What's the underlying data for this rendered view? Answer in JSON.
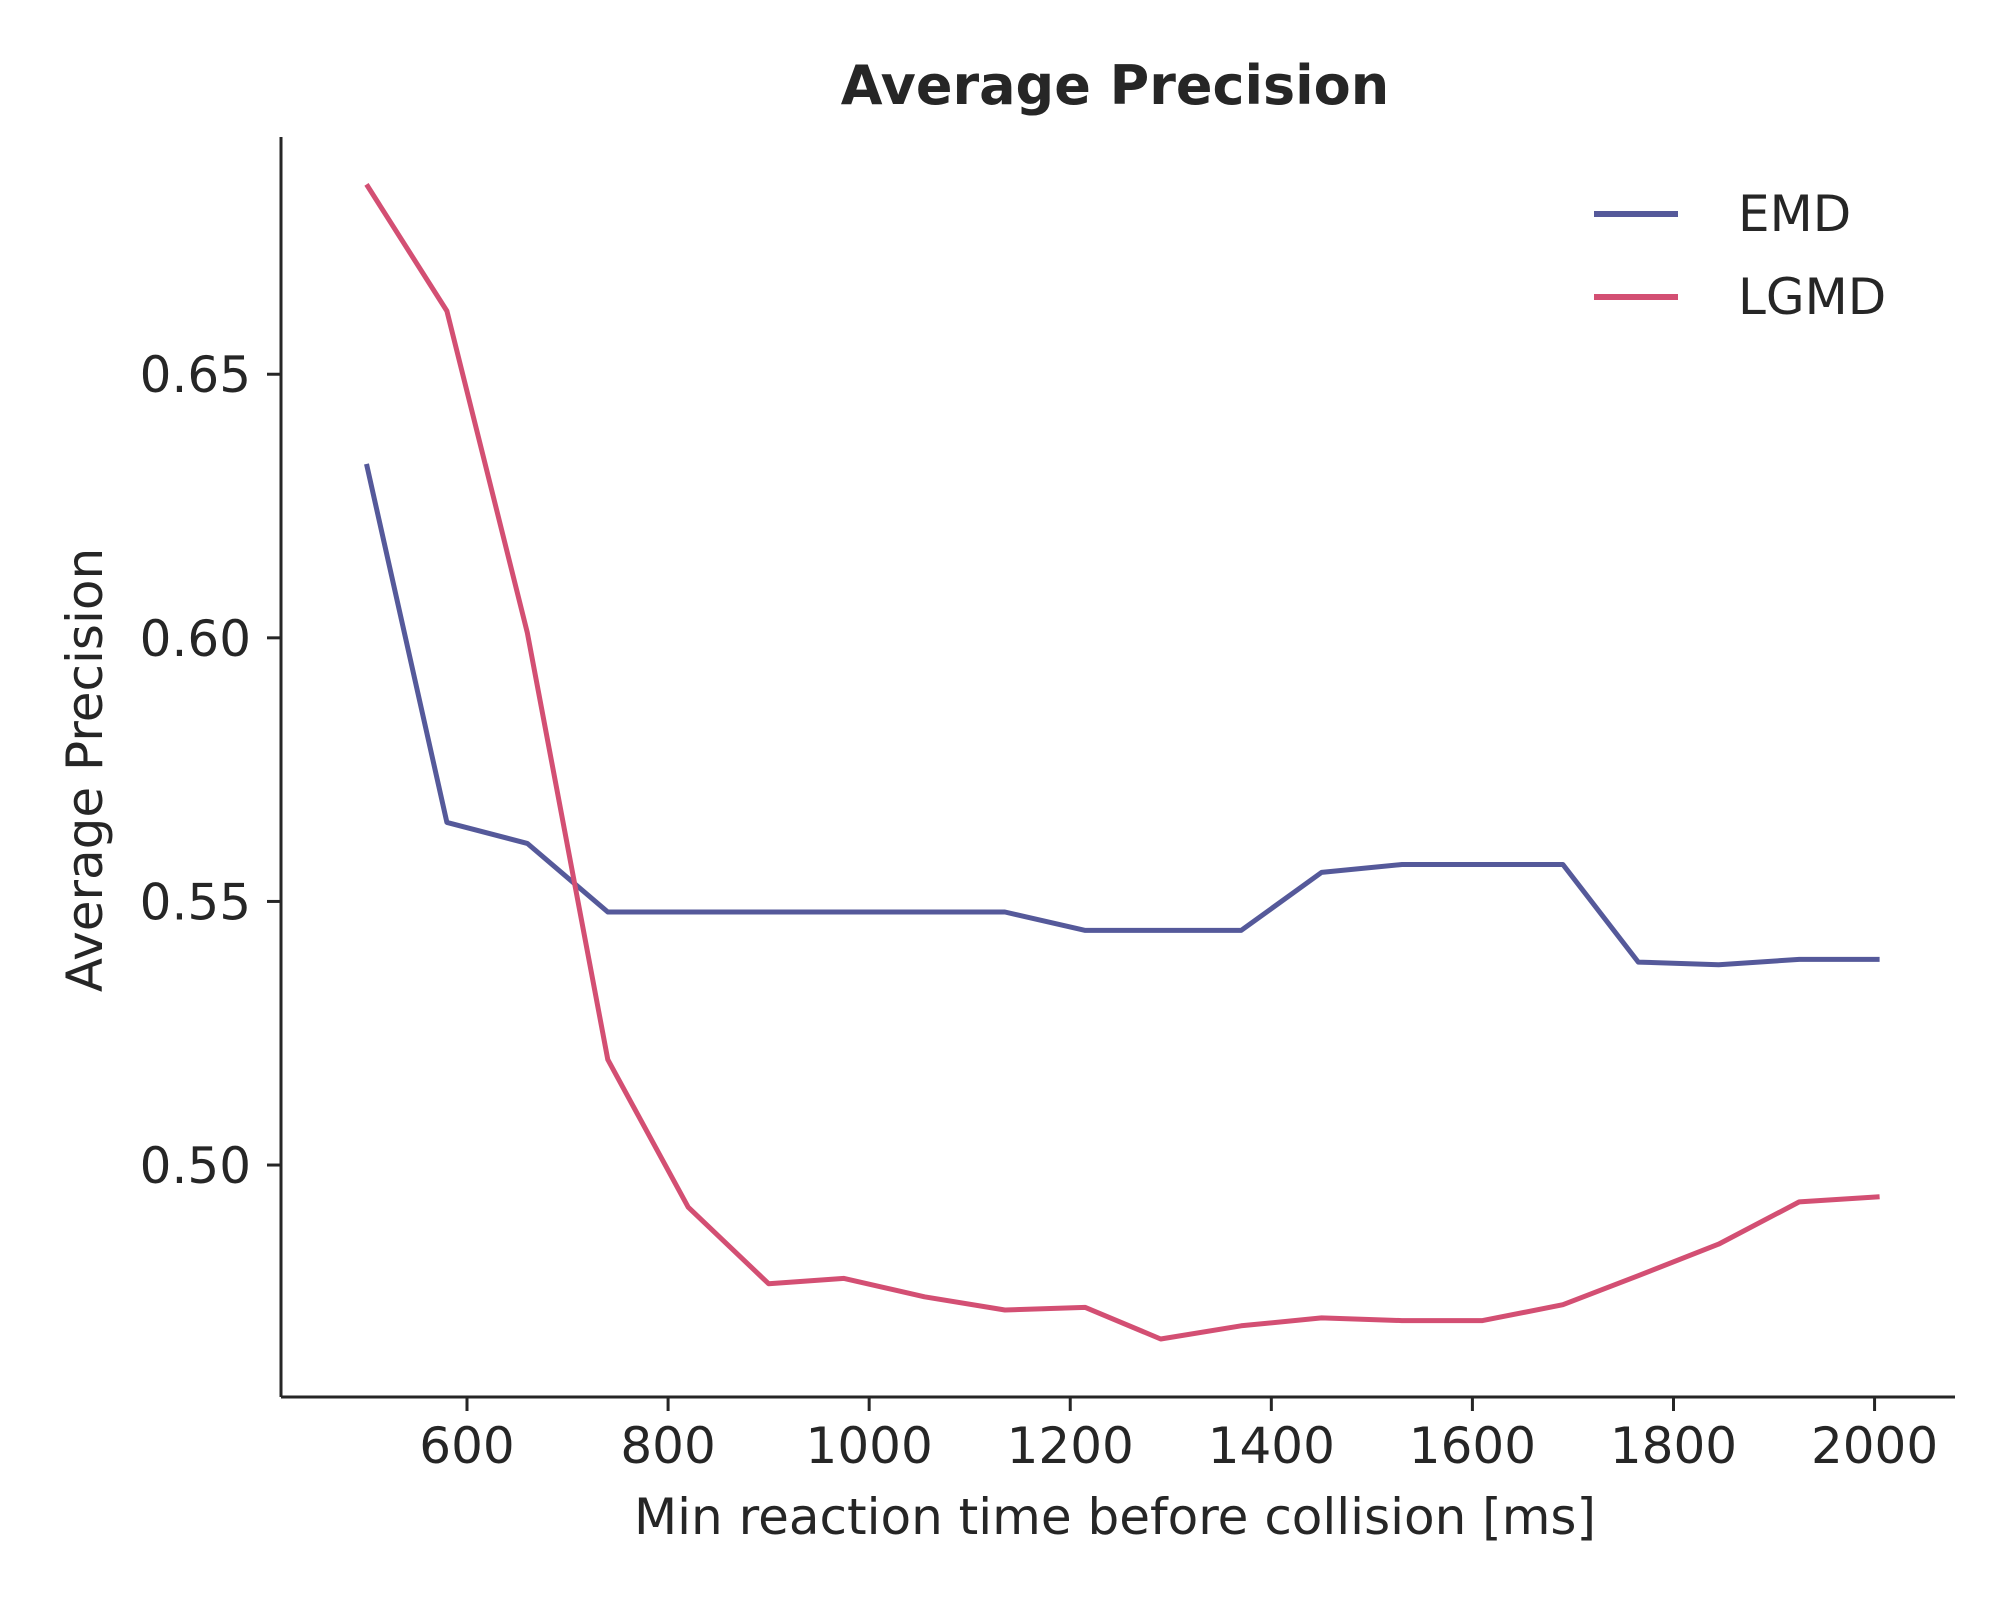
{
  "chart_data": {
    "type": "line",
    "title": "Average Precision",
    "xlabel": "Min reaction time before collision [ms]",
    "ylabel": "Average Precision",
    "xlim": [
      415,
      2080
    ],
    "ylim": [
      0.456,
      0.695
    ],
    "xticks": [
      600,
      800,
      1000,
      1200,
      1400,
      1600,
      1800,
      2000
    ],
    "xtick_labels": [
      "600",
      "800",
      "1000",
      "1200",
      "1400",
      "1600",
      "1800",
      "2000"
    ],
    "yticks": [
      0.5,
      0.55,
      0.6,
      0.65
    ],
    "ytick_labels": [
      "0.50",
      "0.55",
      "0.60",
      "0.65"
    ],
    "grid": false,
    "legend_position": "top-right",
    "x": [
      500,
      580,
      660,
      740,
      820,
      900,
      975,
      1055,
      1135,
      1215,
      1290,
      1370,
      1450,
      1530,
      1610,
      1690,
      1765,
      1845,
      1925,
      2005
    ],
    "series": [
      {
        "name": "EMD",
        "color": "#55599a",
        "values": [
          0.633,
          0.565,
          0.561,
          0.548,
          0.548,
          0.548,
          0.548,
          0.548,
          0.548,
          0.5445,
          0.5445,
          0.5445,
          0.5555,
          0.557,
          0.557,
          0.557,
          0.5385,
          0.538,
          0.539,
          0.539
        ]
      },
      {
        "name": "LGMD",
        "color": "#d34f73",
        "values": [
          0.686,
          0.662,
          0.601,
          0.52,
          0.492,
          0.4775,
          0.4785,
          0.475,
          0.4725,
          0.473,
          0.467,
          0.4695,
          0.471,
          0.4705,
          0.4705,
          0.4735,
          0.479,
          0.485,
          0.493,
          0.494
        ]
      }
    ]
  }
}
